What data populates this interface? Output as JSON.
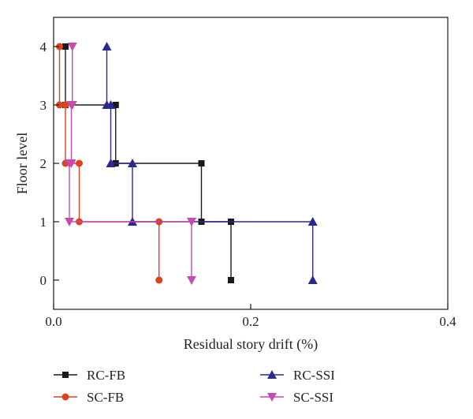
{
  "chart_data": {
    "type": "line",
    "xlabel": "Residual story drift (%)",
    "ylabel": "Floor level",
    "xlim": [
      0,
      0.4
    ],
    "ylim": [
      -0.5,
      4.5
    ],
    "xticks": [
      {
        "value": 0.0,
        "label": "0.0"
      },
      {
        "value": 0.2,
        "label": "0.2"
      },
      {
        "value": 0.4,
        "label": "0.4"
      }
    ],
    "yticks": [
      {
        "value": 0,
        "label": "0"
      },
      {
        "value": 1,
        "label": "1"
      },
      {
        "value": 2,
        "label": "2"
      },
      {
        "value": 3,
        "label": "3"
      },
      {
        "value": 4,
        "label": "4"
      }
    ],
    "grid": false,
    "legend_position": "bottom",
    "series": [
      {
        "name": "RC-FB",
        "color": "#1a1a1a",
        "marker": "square",
        "points": [
          [
            0.18,
            0
          ],
          [
            0.18,
            1
          ],
          [
            0.15,
            1
          ],
          [
            0.15,
            2
          ],
          [
            0.063,
            2
          ],
          [
            0.063,
            3
          ],
          [
            0.012,
            3
          ],
          [
            0.012,
            4
          ]
        ]
      },
      {
        "name": "SC-FB",
        "color": "#d9431e",
        "marker": "circle",
        "points": [
          [
            0.107,
            0
          ],
          [
            0.107,
            1
          ],
          [
            0.026,
            1
          ],
          [
            0.026,
            2
          ],
          [
            0.012,
            2
          ],
          [
            0.012,
            3
          ],
          [
            0.006,
            3
          ],
          [
            0.006,
            4
          ]
        ]
      },
      {
        "name": "RC-SSI",
        "color": "#2a2a8c",
        "marker": "triangle-up",
        "points": [
          [
            0.263,
            0
          ],
          [
            0.263,
            1
          ],
          [
            0.08,
            1
          ],
          [
            0.08,
            2
          ],
          [
            0.058,
            2
          ],
          [
            0.058,
            3
          ],
          [
            0.054,
            3
          ],
          [
            0.054,
            4
          ]
        ]
      },
      {
        "name": "SC-SSI",
        "color": "#c54bb0",
        "marker": "triangle-down",
        "points": [
          [
            0.14,
            0
          ],
          [
            0.14,
            1
          ],
          [
            0.016,
            1
          ],
          [
            0.016,
            2
          ],
          [
            0.018,
            2
          ],
          [
            0.018,
            3
          ],
          [
            0.019,
            3
          ],
          [
            0.019,
            4
          ]
        ]
      }
    ]
  }
}
